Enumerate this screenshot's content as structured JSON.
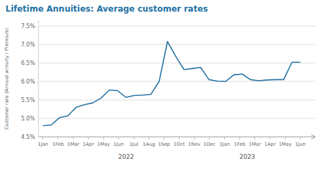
{
  "chart_data": {
    "type": "line",
    "title": "Lifetime Annuities: Average customer rates",
    "ylabel": "Customer rate (Annual annuity / Premium)",
    "color": "#2472a4",
    "x": [
      0,
      0.548387,
      1.096774,
      1.645161,
      2.193548,
      2.741935,
      3.290323,
      3.83871,
      4.387097,
      4.935484,
      5.483871,
      6.032258,
      6.580645,
      7.129032,
      7.677419,
      8.225806,
      8.774194,
      9.322581,
      9.870968,
      10.419355,
      10.967742,
      11.516129,
      12.064516,
      12.612903,
      13.16129,
      13.709677,
      14.258065,
      14.806452,
      15.354839,
      15.903226,
      16.451613,
      17
    ],
    "values": [
      4.8,
      4.82,
      5.02,
      5.07,
      5.3,
      5.37,
      5.42,
      5.55,
      5.77,
      5.75,
      5.57,
      5.62,
      5.63,
      5.65,
      6.0,
      7.08,
      6.68,
      6.32,
      6.35,
      6.38,
      6.05,
      6.01,
      6.0,
      6.18,
      6.2,
      6.05,
      6.02,
      6.04,
      6.05,
      6.05,
      6.52,
      6.52
    ],
    "xlim": [
      -0.3,
      18.0
    ],
    "xticks": [
      {
        "value": 0,
        "label": "1Jan"
      },
      {
        "value": 1,
        "label": "1Feb"
      },
      {
        "value": 2,
        "label": "1Mar"
      },
      {
        "value": 3,
        "label": "1Apr"
      },
      {
        "value": 4,
        "label": "1May"
      },
      {
        "value": 5,
        "label": "1Jun"
      },
      {
        "value": 6,
        "label": "1Jul"
      },
      {
        "value": 7,
        "label": "1Aug"
      },
      {
        "value": 8,
        "label": "1Sep"
      },
      {
        "value": 9,
        "label": "1Oct"
      },
      {
        "value": 10,
        "label": "1Nov"
      },
      {
        "value": 11,
        "label": "1Dec"
      },
      {
        "value": 12,
        "label": "1Jan"
      },
      {
        "value": 13,
        "label": "1Feb"
      },
      {
        "value": 14,
        "label": "1Mar"
      },
      {
        "value": 15,
        "label": "1Apr"
      },
      {
        "value": 16,
        "label": "1May"
      },
      {
        "value": 17,
        "label": "1Jun"
      }
    ],
    "ylim": [
      4.5,
      7.65
    ],
    "yticks": [
      {
        "value": 4.5,
        "label": "4.5%"
      },
      {
        "value": 5.0,
        "label": "5.0%"
      },
      {
        "value": 5.5,
        "label": "5.5%"
      },
      {
        "value": 6.0,
        "label": "6.0%"
      },
      {
        "value": 6.5,
        "label": "6.5%"
      },
      {
        "value": 7.0,
        "label": "7.0%"
      },
      {
        "value": 7.5,
        "label": "7.5%"
      }
    ],
    "grid": true,
    "annotations": [
      {
        "text": "2022",
        "x": 5.5
      },
      {
        "text": "2023",
        "x": 13.5
      }
    ]
  }
}
